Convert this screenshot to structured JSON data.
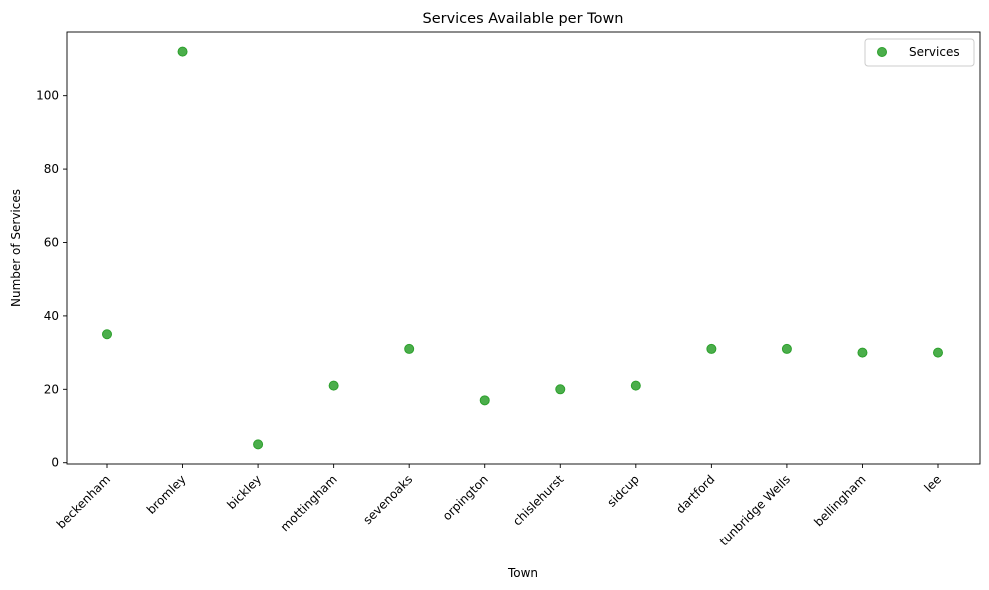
{
  "chart_data": {
    "type": "scatter",
    "title": "Services Available per Town",
    "xlabel": "Town",
    "ylabel": "Number of Services",
    "categories": [
      "beckenham",
      "bromley",
      "bickley",
      "mottingham",
      "sevenoaks",
      "orpington",
      "chislehurst",
      "sidcup",
      "dartford",
      "tunbridge Wells",
      "bellingham",
      "lee"
    ],
    "series": [
      {
        "name": "Services",
        "values": [
          35,
          112,
          5,
          21,
          31,
          17,
          20,
          21,
          31,
          31,
          30,
          30
        ],
        "color": "#2ca02c"
      }
    ],
    "ylim": [
      -0.35,
      117.35
    ],
    "yticks": [
      0,
      20,
      40,
      60,
      80,
      100
    ],
    "grid": false,
    "legend_position": "top-right"
  }
}
